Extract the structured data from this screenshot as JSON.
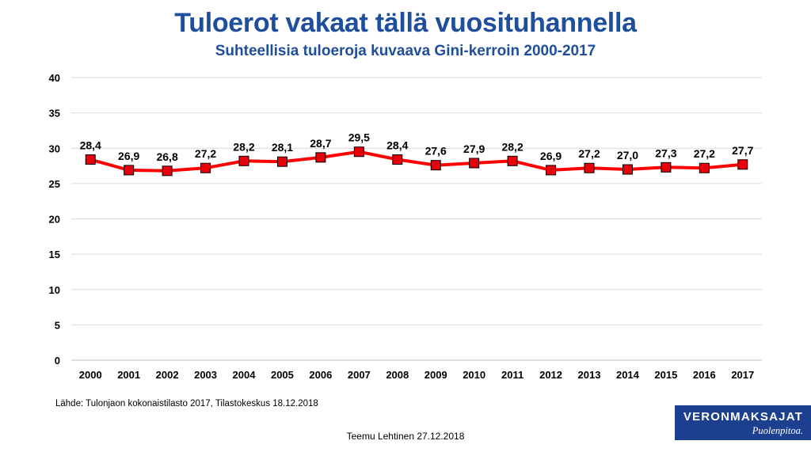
{
  "title": "Tuloerot vakaat tällä vuosituhannella",
  "subtitle": "Suhteellisia tuloeroja kuvaava Gini-kerroin 2000-2017",
  "source": "Lähde: Tulonjaon  kokonaistilasto 2017, Tilastokeskus 18.12.2018",
  "author": "Teemu Lehtinen  27.12.2018",
  "logo": {
    "name": "VERONMAKSAJAT",
    "tagline": "Puolenpitoa."
  },
  "colors": {
    "title": "#1f4e9c",
    "line": "#ff0000",
    "marker": "#e8000a",
    "marker_border": "#000000",
    "grid": "#d9d9d9",
    "logo_bg": "#1d3f8f"
  },
  "chart_data": {
    "type": "line",
    "categories": [
      "2000",
      "2001",
      "2002",
      "2003",
      "2004",
      "2005",
      "2006",
      "2007",
      "2008",
      "2009",
      "2010",
      "2011",
      "2012",
      "2013",
      "2014",
      "2015",
      "2016",
      "2017"
    ],
    "values": [
      28.4,
      26.9,
      26.8,
      27.2,
      28.2,
      28.1,
      28.7,
      29.5,
      28.4,
      27.6,
      27.9,
      28.2,
      26.9,
      27.2,
      27.0,
      27.3,
      27.2,
      27.7
    ],
    "labels": [
      "28,4",
      "26,9",
      "26,8",
      "27,2",
      "28,2",
      "28,1",
      "28,7",
      "29,5",
      "28,4",
      "27,6",
      "27,9",
      "28,2",
      "26,9",
      "27,2",
      "27,0",
      "27,3",
      "27,2",
      "27,7"
    ],
    "yticks": [
      "0",
      "5",
      "10",
      "15",
      "20",
      "25",
      "30",
      "35",
      "40"
    ],
    "ylim": [
      0,
      40
    ],
    "grid": true,
    "marker": "square"
  }
}
